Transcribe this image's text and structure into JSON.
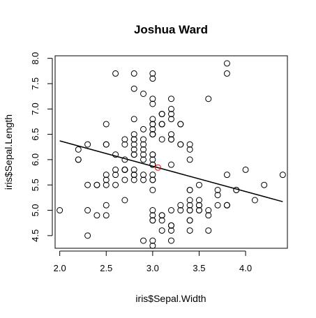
{
  "chart_data": {
    "type": "scatter",
    "title": "Joshua Ward",
    "xlabel": "iris$Sepal.Width",
    "ylabel": "iris$Sepal.Length",
    "xlim": [
      1.95,
      4.45
    ],
    "ylim": [
      4.25,
      8.05
    ],
    "x_ticks": [
      "2.0",
      "2.5",
      "3.0",
      "3.5",
      "4.0"
    ],
    "y_ticks": [
      "4.5",
      "5.0",
      "5.5",
      "6.0",
      "6.5",
      "7.0",
      "7.5",
      "8.0"
    ],
    "grid": false,
    "points": [
      [
        3.5,
        5.1
      ],
      [
        3.0,
        4.9
      ],
      [
        3.2,
        4.7
      ],
      [
        3.1,
        4.6
      ],
      [
        3.6,
        5.0
      ],
      [
        3.9,
        5.4
      ],
      [
        3.4,
        4.6
      ],
      [
        3.4,
        5.0
      ],
      [
        2.9,
        4.4
      ],
      [
        3.1,
        4.9
      ],
      [
        3.7,
        5.4
      ],
      [
        3.4,
        4.8
      ],
      [
        3.0,
        4.8
      ],
      [
        3.0,
        4.3
      ],
      [
        4.0,
        5.8
      ],
      [
        4.4,
        5.7
      ],
      [
        3.9,
        5.4
      ],
      [
        3.5,
        5.1
      ],
      [
        3.8,
        5.7
      ],
      [
        3.8,
        5.1
      ],
      [
        3.4,
        5.4
      ],
      [
        3.7,
        5.1
      ],
      [
        3.6,
        4.6
      ],
      [
        3.3,
        5.1
      ],
      [
        3.4,
        4.8
      ],
      [
        3.0,
        5.0
      ],
      [
        3.4,
        5.0
      ],
      [
        3.5,
        5.2
      ],
      [
        3.4,
        5.2
      ],
      [
        3.2,
        4.7
      ],
      [
        3.1,
        4.8
      ],
      [
        3.4,
        5.4
      ],
      [
        4.1,
        5.2
      ],
      [
        4.2,
        5.5
      ],
      [
        3.1,
        4.9
      ],
      [
        3.2,
        5.0
      ],
      [
        3.5,
        5.5
      ],
      [
        3.6,
        4.9
      ],
      [
        3.0,
        4.4
      ],
      [
        3.4,
        5.1
      ],
      [
        3.5,
        5.0
      ],
      [
        2.3,
        4.5
      ],
      [
        3.2,
        4.4
      ],
      [
        3.5,
        5.0
      ],
      [
        3.8,
        5.1
      ],
      [
        3.0,
        4.8
      ],
      [
        3.8,
        5.1
      ],
      [
        3.2,
        4.6
      ],
      [
        3.7,
        5.3
      ],
      [
        3.3,
        5.0
      ],
      [
        3.2,
        7.0
      ],
      [
        3.2,
        6.4
      ],
      [
        3.1,
        6.9
      ],
      [
        2.3,
        5.5
      ],
      [
        2.8,
        6.5
      ],
      [
        2.8,
        5.7
      ],
      [
        3.3,
        6.3
      ],
      [
        2.4,
        4.9
      ],
      [
        2.9,
        6.6
      ],
      [
        2.7,
        5.2
      ],
      [
        2.0,
        5.0
      ],
      [
        3.0,
        5.9
      ],
      [
        2.2,
        6.0
      ],
      [
        2.9,
        6.1
      ],
      [
        2.9,
        5.6
      ],
      [
        3.1,
        6.7
      ],
      [
        3.0,
        5.6
      ],
      [
        2.7,
        5.8
      ],
      [
        2.2,
        6.2
      ],
      [
        2.5,
        5.6
      ],
      [
        3.2,
        5.9
      ],
      [
        2.8,
        6.1
      ],
      [
        2.5,
        6.3
      ],
      [
        2.8,
        6.1
      ],
      [
        2.9,
        6.4
      ],
      [
        3.0,
        6.6
      ],
      [
        2.8,
        6.8
      ],
      [
        3.0,
        6.7
      ],
      [
        2.9,
        6.0
      ],
      [
        2.6,
        5.7
      ],
      [
        2.4,
        5.5
      ],
      [
        2.4,
        5.5
      ],
      [
        2.7,
        5.8
      ],
      [
        2.7,
        6.0
      ],
      [
        3.0,
        5.4
      ],
      [
        3.4,
        6.0
      ],
      [
        3.1,
        6.7
      ],
      [
        2.3,
        6.3
      ],
      [
        3.0,
        5.6
      ],
      [
        2.5,
        5.5
      ],
      [
        2.6,
        5.5
      ],
      [
        3.0,
        6.1
      ],
      [
        2.6,
        5.8
      ],
      [
        2.3,
        5.0
      ],
      [
        2.7,
        5.6
      ],
      [
        3.0,
        5.7
      ],
      [
        2.9,
        5.7
      ],
      [
        2.9,
        6.2
      ],
      [
        2.5,
        5.1
      ],
      [
        2.8,
        5.7
      ],
      [
        3.3,
        6.3
      ],
      [
        2.7,
        5.8
      ],
      [
        3.0,
        7.1
      ],
      [
        2.9,
        6.3
      ],
      [
        3.0,
        6.5
      ],
      [
        3.0,
        7.6
      ],
      [
        2.5,
        4.9
      ],
      [
        2.9,
        7.3
      ],
      [
        2.5,
        6.7
      ],
      [
        3.6,
        7.2
      ],
      [
        3.2,
        6.5
      ],
      [
        2.7,
        6.4
      ],
      [
        3.0,
        6.8
      ],
      [
        2.5,
        5.7
      ],
      [
        2.8,
        5.8
      ],
      [
        3.2,
        6.4
      ],
      [
        3.0,
        6.5
      ],
      [
        3.8,
        7.7
      ],
      [
        2.6,
        7.7
      ],
      [
        2.2,
        6.0
      ],
      [
        3.2,
        6.9
      ],
      [
        2.8,
        5.6
      ],
      [
        2.8,
        7.7
      ],
      [
        2.7,
        6.3
      ],
      [
        3.3,
        6.7
      ],
      [
        3.2,
        7.2
      ],
      [
        2.8,
        6.2
      ],
      [
        3.0,
        6.1
      ],
      [
        2.8,
        6.4
      ],
      [
        3.0,
        7.2
      ],
      [
        2.8,
        7.4
      ],
      [
        3.8,
        7.9
      ],
      [
        2.8,
        6.4
      ],
      [
        2.8,
        6.3
      ],
      [
        2.6,
        6.1
      ],
      [
        3.0,
        7.7
      ],
      [
        3.4,
        6.3
      ],
      [
        3.1,
        6.4
      ],
      [
        3.0,
        6.0
      ],
      [
        3.1,
        6.9
      ],
      [
        3.1,
        6.7
      ],
      [
        3.1,
        6.9
      ],
      [
        2.7,
        5.8
      ],
      [
        3.2,
        6.8
      ],
      [
        3.3,
        6.7
      ],
      [
        3.0,
        6.7
      ],
      [
        2.5,
        6.3
      ],
      [
        3.0,
        6.5
      ],
      [
        3.4,
        6.2
      ],
      [
        3.0,
        5.9
      ]
    ],
    "mean_point": [
      3.057,
      5.843
    ],
    "regression_line": [
      [
        2.0,
        6.37
      ],
      [
        4.4,
        5.17
      ]
    ],
    "colors": {
      "points": "#000000",
      "mean_point": "#ff0000",
      "line": "#000000",
      "axis": "#000000"
    }
  }
}
